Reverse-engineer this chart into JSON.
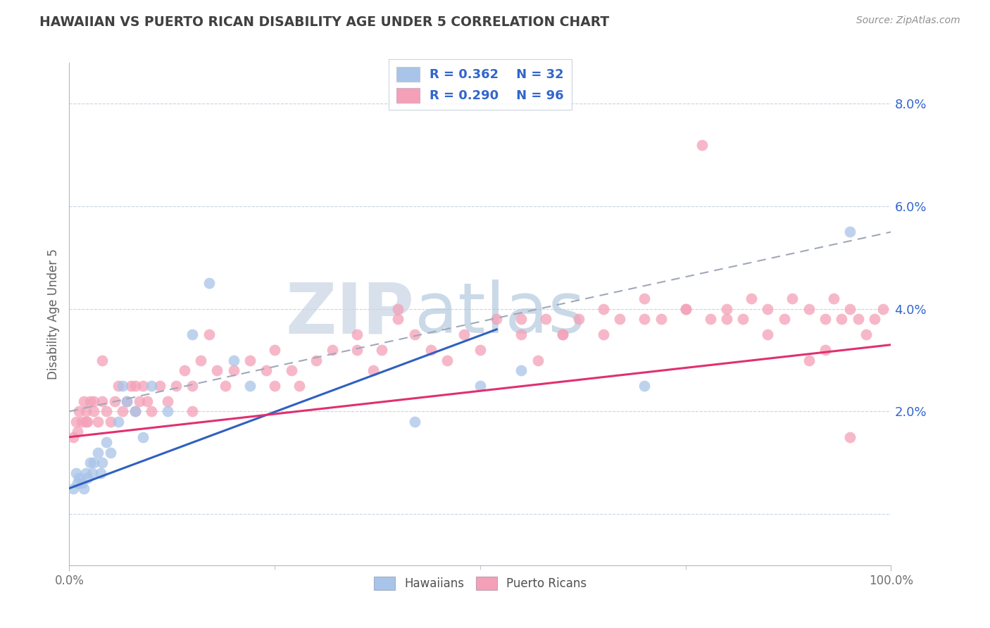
{
  "title": "HAWAIIAN VS PUERTO RICAN DISABILITY AGE UNDER 5 CORRELATION CHART",
  "source_text": "Source: ZipAtlas.com",
  "ylabel": "Disability Age Under 5",
  "watermark_left": "ZIP",
  "watermark_right": "atlas",
  "hawaiian_R": 0.362,
  "hawaiian_N": 32,
  "puerto_rican_R": 0.29,
  "puerto_rican_N": 96,
  "hawaiian_color": "#a8c4e8",
  "puerto_rican_color": "#f4a0b8",
  "hawaiian_line_color": "#3060c0",
  "puerto_rican_line_color": "#e03070",
  "trend_line_color": "#a0a8b8",
  "background_color": "#ffffff",
  "grid_color": "#c8d4e4",
  "title_color": "#404040",
  "legend_text_color": "#3366cc",
  "ytick_color": "#3366cc",
  "xmin": 0.0,
  "xmax": 1.0,
  "ymin": -0.01,
  "ymax": 0.088,
  "hawaiian_x": [
    0.005,
    0.008,
    0.01,
    0.012,
    0.015,
    0.018,
    0.02,
    0.022,
    0.025,
    0.028,
    0.03,
    0.035,
    0.038,
    0.04,
    0.045,
    0.05,
    0.06,
    0.065,
    0.07,
    0.08,
    0.09,
    0.1,
    0.12,
    0.15,
    0.17,
    0.2,
    0.22,
    0.42,
    0.5,
    0.55,
    0.7,
    0.95
  ],
  "hawaiian_y": [
    0.005,
    0.008,
    0.006,
    0.007,
    0.006,
    0.005,
    0.008,
    0.007,
    0.01,
    0.008,
    0.01,
    0.012,
    0.008,
    0.01,
    0.014,
    0.012,
    0.018,
    0.025,
    0.022,
    0.02,
    0.015,
    0.025,
    0.02,
    0.035,
    0.045,
    0.03,
    0.025,
    0.018,
    0.025,
    0.028,
    0.025,
    0.055
  ],
  "puerto_rican_x": [
    0.005,
    0.008,
    0.01,
    0.012,
    0.015,
    0.018,
    0.02,
    0.022,
    0.025,
    0.03,
    0.035,
    0.04,
    0.045,
    0.05,
    0.055,
    0.06,
    0.065,
    0.07,
    0.075,
    0.08,
    0.085,
    0.09,
    0.095,
    0.1,
    0.11,
    0.12,
    0.13,
    0.14,
    0.15,
    0.16,
    0.17,
    0.18,
    0.19,
    0.2,
    0.22,
    0.24,
    0.25,
    0.27,
    0.28,
    0.3,
    0.32,
    0.35,
    0.37,
    0.38,
    0.4,
    0.42,
    0.44,
    0.46,
    0.48,
    0.5,
    0.52,
    0.55,
    0.57,
    0.58,
    0.6,
    0.62,
    0.65,
    0.67,
    0.7,
    0.72,
    0.75,
    0.77,
    0.78,
    0.8,
    0.82,
    0.83,
    0.85,
    0.87,
    0.88,
    0.9,
    0.92,
    0.93,
    0.94,
    0.95,
    0.96,
    0.97,
    0.98,
    0.99,
    0.65,
    0.7,
    0.75,
    0.8,
    0.85,
    0.9,
    0.92,
    0.95,
    0.55,
    0.6,
    0.4,
    0.35,
    0.25,
    0.15,
    0.08,
    0.04,
    0.03,
    0.02
  ],
  "puerto_rican_y": [
    0.015,
    0.018,
    0.016,
    0.02,
    0.018,
    0.022,
    0.02,
    0.018,
    0.022,
    0.02,
    0.018,
    0.022,
    0.02,
    0.018,
    0.022,
    0.025,
    0.02,
    0.022,
    0.025,
    0.02,
    0.022,
    0.025,
    0.022,
    0.02,
    0.025,
    0.022,
    0.025,
    0.028,
    0.025,
    0.03,
    0.035,
    0.028,
    0.025,
    0.028,
    0.03,
    0.028,
    0.032,
    0.028,
    0.025,
    0.03,
    0.032,
    0.035,
    0.028,
    0.032,
    0.038,
    0.035,
    0.032,
    0.03,
    0.035,
    0.032,
    0.038,
    0.035,
    0.03,
    0.038,
    0.035,
    0.038,
    0.04,
    0.038,
    0.042,
    0.038,
    0.04,
    0.072,
    0.038,
    0.04,
    0.038,
    0.042,
    0.04,
    0.038,
    0.042,
    0.04,
    0.038,
    0.042,
    0.038,
    0.04,
    0.038,
    0.035,
    0.038,
    0.04,
    0.035,
    0.038,
    0.04,
    0.038,
    0.035,
    0.03,
    0.032,
    0.015,
    0.038,
    0.035,
    0.04,
    0.032,
    0.025,
    0.02,
    0.025,
    0.03,
    0.022,
    0.018
  ],
  "ytick_positions": [
    0.0,
    0.02,
    0.04,
    0.06,
    0.08
  ],
  "ytick_labels": [
    "",
    "2.0%",
    "4.0%",
    "6.0%",
    "8.0%"
  ]
}
